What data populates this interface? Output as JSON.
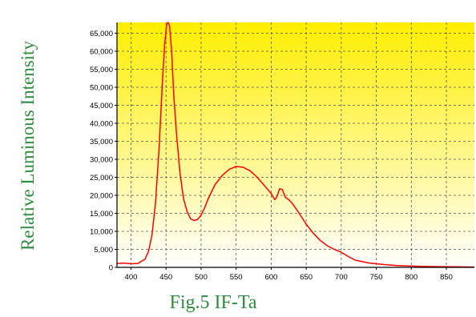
{
  "chart_data": {
    "type": "line",
    "ylabel": "Relative Luminous Intensity",
    "xlabel": "",
    "caption": "Fig.5 IF-Ta",
    "xlim": [
      380,
      890
    ],
    "ylim": [
      0,
      68000
    ],
    "xticks": [
      400,
      450,
      500,
      550,
      600,
      650,
      700,
      750,
      800,
      850
    ],
    "xtick_labels": [
      "400",
      "450",
      "500",
      "550",
      "600",
      "650",
      "700",
      "750",
      "800",
      "850"
    ],
    "yticks": [
      0,
      5000,
      10000,
      15000,
      20000,
      25000,
      30000,
      35000,
      40000,
      45000,
      50000,
      55000,
      60000,
      65000
    ],
    "ytick_labels": [
      "0",
      "5,000",
      "10,000",
      "15,000",
      "20,000",
      "25,000",
      "30,000",
      "35,000",
      "40,000",
      "45,000",
      "50,000",
      "55,000",
      "60,000",
      "65,000"
    ],
    "grid": true,
    "background": "yellow-to-white vertical gradient",
    "colors": {
      "line": "#ff0000",
      "gradient_top": "#ffee00",
      "gradient_bottom": "#ffffff",
      "label": "#2e8b3e",
      "grid": "#555555"
    },
    "series": [
      {
        "x": [
          380,
          390,
          400,
          410,
          420,
          425,
          430,
          435,
          440,
          445,
          448,
          451,
          453,
          455,
          458,
          461,
          465,
          470,
          475,
          480,
          485,
          490,
          495,
          500,
          505,
          510,
          520,
          530,
          540,
          550,
          560,
          570,
          580,
          590,
          600,
          605,
          608,
          612,
          616,
          620,
          625,
          630,
          640,
          650,
          660,
          670,
          680,
          690,
          700,
          710,
          720,
          740,
          760,
          780,
          800,
          820,
          840,
          860,
          880,
          890
        ],
        "y": [
          1100,
          1200,
          1000,
          1100,
          2300,
          4500,
          9000,
          18000,
          33000,
          52000,
          62000,
          67500,
          68000,
          67000,
          60000,
          48000,
          37000,
          26000,
          19000,
          15500,
          13500,
          13000,
          13300,
          14500,
          16500,
          19000,
          23000,
          25500,
          27200,
          28000,
          27800,
          26800,
          25000,
          22800,
          20500,
          18800,
          19500,
          21800,
          21600,
          19500,
          18800,
          17800,
          15000,
          12000,
          9500,
          7500,
          6000,
          5000,
          4200,
          3000,
          2000,
          1200,
          800,
          500,
          350,
          250,
          200,
          150,
          120,
          100
        ]
      }
    ]
  }
}
